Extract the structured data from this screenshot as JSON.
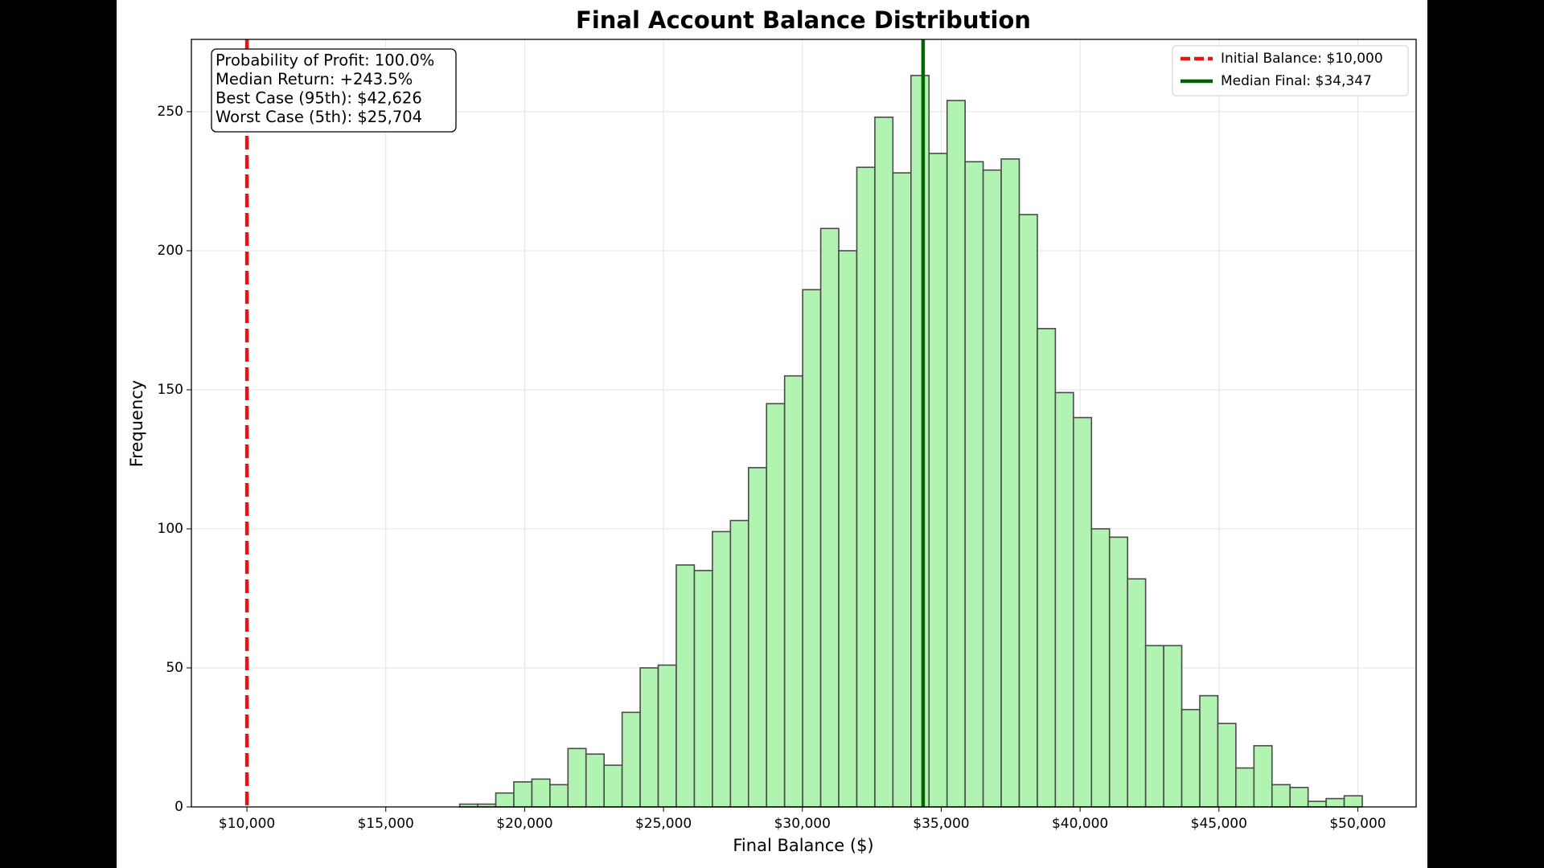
{
  "chart_data": {
    "type": "histogram",
    "title": "Final Account Balance Distribution",
    "xlabel": "Final Balance ($)",
    "ylabel": "Frequency",
    "bins": [
      17660,
      18310,
      18960,
      19610,
      20260,
      20910,
      21560,
      22210,
      22860,
      23510,
      24160,
      24810,
      25460,
      26110,
      26760,
      27410,
      28060,
      28710,
      29360,
      30010,
      30660,
      31310,
      31960,
      32610,
      33260,
      33910,
      34560,
      35210,
      35860,
      36510,
      37160,
      37810,
      38460,
      39110,
      39760,
      40410,
      41060,
      41710,
      42360,
      43010,
      43660,
      44310,
      44960,
      45610,
      46260,
      46910,
      47560,
      48210,
      48860,
      49510,
      50160
    ],
    "counts": [
      1,
      1,
      5,
      9,
      10,
      8,
      21,
      19,
      15,
      34,
      50,
      51,
      87,
      85,
      99,
      103,
      122,
      145,
      155,
      186,
      208,
      200,
      230,
      248,
      228,
      263,
      235,
      254,
      232,
      229,
      233,
      213,
      172,
      149,
      140,
      100,
      97,
      82,
      58,
      58,
      35,
      40,
      30,
      14,
      22,
      8,
      7,
      2,
      3,
      4
    ],
    "color": "#b1f3b1",
    "edgecolor": "#4a4a4a",
    "lines": [
      {
        "name": "Initial Balance: $10,000",
        "value": 10000,
        "color": "#ee1111",
        "style": "dashed"
      },
      {
        "name": "Median Final: $34,347",
        "value": 34347,
        "color": "#006400",
        "style": "solid"
      }
    ],
    "annotation": [
      "Probability of Profit: 100.0%",
      "Median Return: +243.5%",
      "Best Case (95th): $42,626",
      "Worst Case (5th): $25,704"
    ],
    "xlim": [
      8000,
      52100
    ],
    "ylim": [
      0,
      276
    ],
    "xticks": [
      {
        "value": 10000,
        "label": "$10,000"
      },
      {
        "value": 15000,
        "label": "$15,000"
      },
      {
        "value": 20000,
        "label": "$20,000"
      },
      {
        "value": 25000,
        "label": "$25,000"
      },
      {
        "value": 30000,
        "label": "$30,000"
      },
      {
        "value": 35000,
        "label": "$35,000"
      },
      {
        "value": 40000,
        "label": "$40,000"
      },
      {
        "value": 45000,
        "label": "$45,000"
      },
      {
        "value": 50000,
        "label": "$50,000"
      }
    ],
    "yticks": [
      0,
      50,
      100,
      150,
      200,
      250
    ],
    "grid": true,
    "legend": "upper right"
  }
}
